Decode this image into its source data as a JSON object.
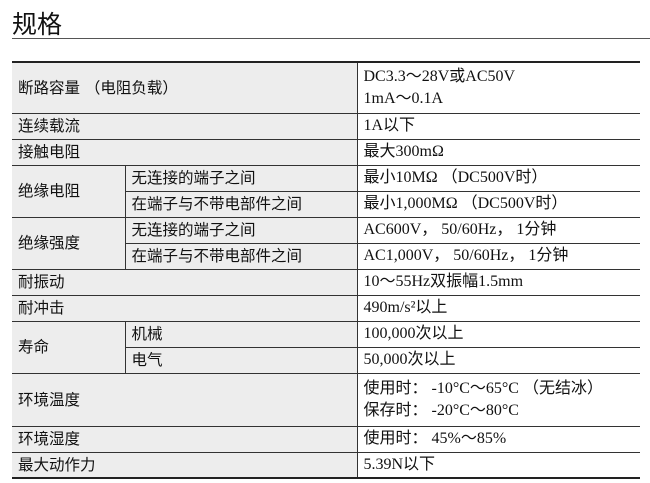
{
  "title": "规格",
  "rows": [
    {
      "label": "断路容量 （电阻负载）",
      "values": [
        "DC3.3～28V或AC50V",
        "1mA～0.1A"
      ]
    },
    {
      "label": "连续载流",
      "values": [
        "1A以下"
      ]
    },
    {
      "label": "接触电阻",
      "values": [
        "最大300mΩ"
      ]
    },
    {
      "label": "绝缘电阻",
      "sub": [
        {
          "label": "无连接的端子之间",
          "value": "最小10MΩ （DC500V时）"
        },
        {
          "label": "在端子与不带电部件之间",
          "value": "最小1,000MΩ （DC500V时）"
        }
      ]
    },
    {
      "label": "绝缘强度",
      "sub": [
        {
          "label": "无连接的端子之间",
          "value": "AC600V， 50/60Hz， 1分钟"
        },
        {
          "label": "在端子与不带电部件之间",
          "value": "AC1,000V， 50/60Hz， 1分钟"
        }
      ]
    },
    {
      "label": "耐振动",
      "values": [
        "10～55Hz双振幅1.5mm"
      ]
    },
    {
      "label": "耐冲击",
      "values": [
        "490m/s²以上"
      ]
    },
    {
      "label": "寿命",
      "sub": [
        {
          "label": "机械",
          "value": "100,000次以上"
        },
        {
          "label": "电气",
          "value": "50,000次以上"
        }
      ]
    },
    {
      "label": "环境温度",
      "values": [
        "使用时： -10°C～65°C （无结冰）",
        "保存时： -20°C～80°C"
      ]
    },
    {
      "label": "环境湿度",
      "values": [
        "使用时： 45%～85%"
      ]
    },
    {
      "label": "最大动作力",
      "values": [
        "5.39N以下"
      ]
    }
  ]
}
